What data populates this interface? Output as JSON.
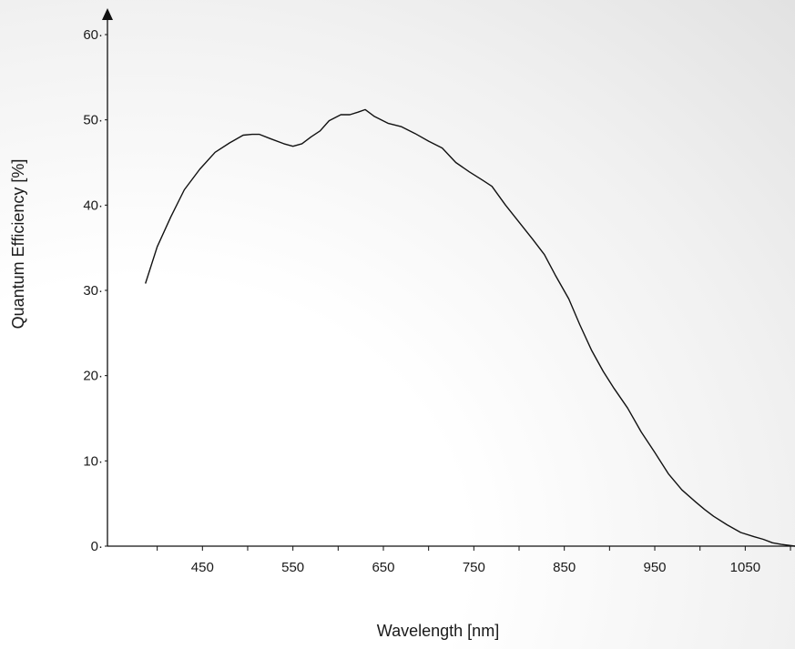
{
  "chart_data": {
    "type": "line",
    "title": "",
    "xlabel": "Wavelength [nm]",
    "ylabel": "Quantum Efficiency [%]",
    "xlim": [
      345,
      1105
    ],
    "ylim": [
      0,
      60
    ],
    "x_ticks": [
      450,
      550,
      650,
      750,
      850,
      950,
      1050
    ],
    "x_tick_labels": [
      "450",
      "550",
      "650",
      "750",
      "850",
      "950",
      "1050"
    ],
    "y_ticks": [
      0,
      10,
      20,
      30,
      40,
      50,
      60
    ],
    "y_tick_labels": [
      "0",
      "10",
      "20",
      "30",
      "40",
      "50",
      "60"
    ],
    "grid": false,
    "legend": "none",
    "line_color": "#111111",
    "series": [
      {
        "x": [
          387,
          400,
          415,
          430,
          447,
          464,
          480,
          495,
          505,
          513,
          525,
          540,
          550,
          560,
          570,
          580,
          590,
          603,
          613,
          622,
          630,
          640,
          655,
          670,
          685,
          700,
          715,
          730,
          745,
          760,
          770,
          785,
          800,
          815,
          828,
          840,
          855,
          867,
          880,
          893,
          905,
          920,
          935,
          950,
          965,
          980,
          995,
          1005,
          1015,
          1030,
          1045,
          1060,
          1070,
          1080,
          1090,
          1105
        ],
        "y": [
          30.8,
          35.1,
          38.6,
          41.8,
          44.2,
          46.2,
          47.3,
          48.2,
          48.3,
          48.3,
          47.8,
          47.2,
          46.9,
          47.2,
          48.0,
          48.7,
          49.9,
          50.6,
          50.6,
          50.9,
          51.2,
          50.4,
          49.6,
          49.2,
          48.4,
          47.5,
          46.7,
          45.0,
          43.9,
          42.9,
          42.2,
          40.0,
          38.0,
          36.0,
          34.2,
          31.8,
          29.0,
          26.0,
          23.0,
          20.5,
          18.5,
          16.2,
          13.4,
          11.0,
          8.5,
          6.6,
          5.2,
          4.3,
          3.5,
          2.5,
          1.6,
          1.1,
          0.8,
          0.4,
          0.2,
          0.0
        ]
      }
    ]
  }
}
